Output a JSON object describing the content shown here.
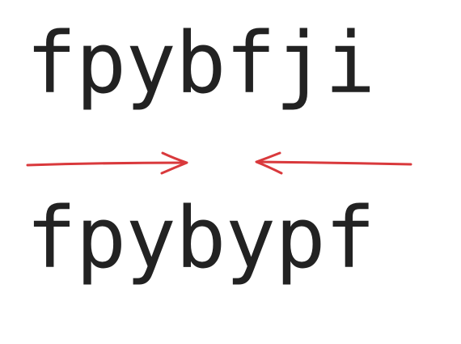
{
  "top_word": "fpybfji",
  "bottom_word": "fpybypf",
  "colors": {
    "text": "#222222",
    "arrow": "#d9393c",
    "background": "#ffffff"
  },
  "icons": [
    "right-arrow-icon",
    "left-arrow-icon"
  ]
}
